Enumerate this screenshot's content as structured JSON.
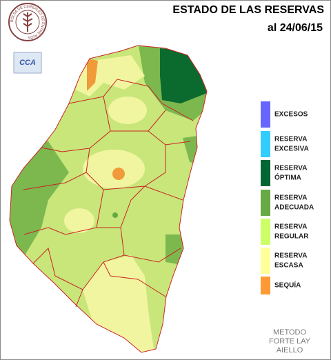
{
  "header": {
    "title": "ESTADO DE LAS RESERVAS",
    "date": "al 24/06/15"
  },
  "logos": {
    "institution": "BOLSA DE CEREALES DE ENTRE RIOS",
    "badge": "CCA"
  },
  "legend": [
    {
      "lines": [
        "EXCESOS"
      ],
      "color": "#6666ff"
    },
    {
      "lines": [
        "RESERVA",
        "EXCESIVA"
      ],
      "color": "#33ccff"
    },
    {
      "lines": [
        "RESERVA",
        "ÓPTIMA"
      ],
      "color": "#006633"
    },
    {
      "lines": [
        "RESERVA",
        "ADECUADA"
      ],
      "color": "#66aa44"
    },
    {
      "lines": [
        "RESERVA",
        "REGULAR"
      ],
      "color": "#ccff66"
    },
    {
      "lines": [
        "RESERVA",
        "ESCASA"
      ],
      "color": "#ffff99"
    },
    {
      "lines": [
        "SEQUÍA"
      ],
      "color": "#ff9933"
    }
  ],
  "method": [
    "METODO",
    "FORTE LAY",
    "AIELLO"
  ]
}
